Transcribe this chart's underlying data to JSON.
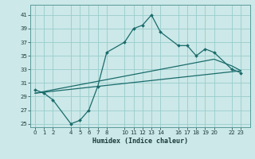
{
  "xlabel": "Humidex (Indice chaleur)",
  "bg_color": "#cce8e8",
  "grid_color": "#99cccc",
  "line_color": "#1a6b6b",
  "xlim": [
    -0.5,
    24.0
  ],
  "ylim": [
    24.5,
    42.5
  ],
  "xticks": [
    0,
    1,
    2,
    4,
    5,
    6,
    7,
    8,
    10,
    11,
    12,
    13,
    14,
    16,
    17,
    18,
    19,
    20,
    22,
    23
  ],
  "yticks": [
    25,
    27,
    29,
    31,
    33,
    35,
    37,
    39,
    41
  ],
  "line1_x": [
    0,
    1,
    2,
    4,
    5,
    6,
    7,
    8,
    10,
    11,
    12,
    13,
    14,
    16,
    17,
    18,
    19,
    20,
    22,
    23
  ],
  "line1_y": [
    30,
    29.5,
    28.5,
    25,
    25.5,
    27,
    30.5,
    35.5,
    37,
    39,
    39.5,
    41,
    38.5,
    36.5,
    36.5,
    35,
    36,
    35.5,
    33,
    32.5
  ],
  "line2_x": [
    0,
    23
  ],
  "line2_y": [
    29.5,
    32.8
  ],
  "line3_x": [
    0,
    20,
    22,
    23
  ],
  "line3_y": [
    29.5,
    34.5,
    33.5,
    32.8
  ]
}
